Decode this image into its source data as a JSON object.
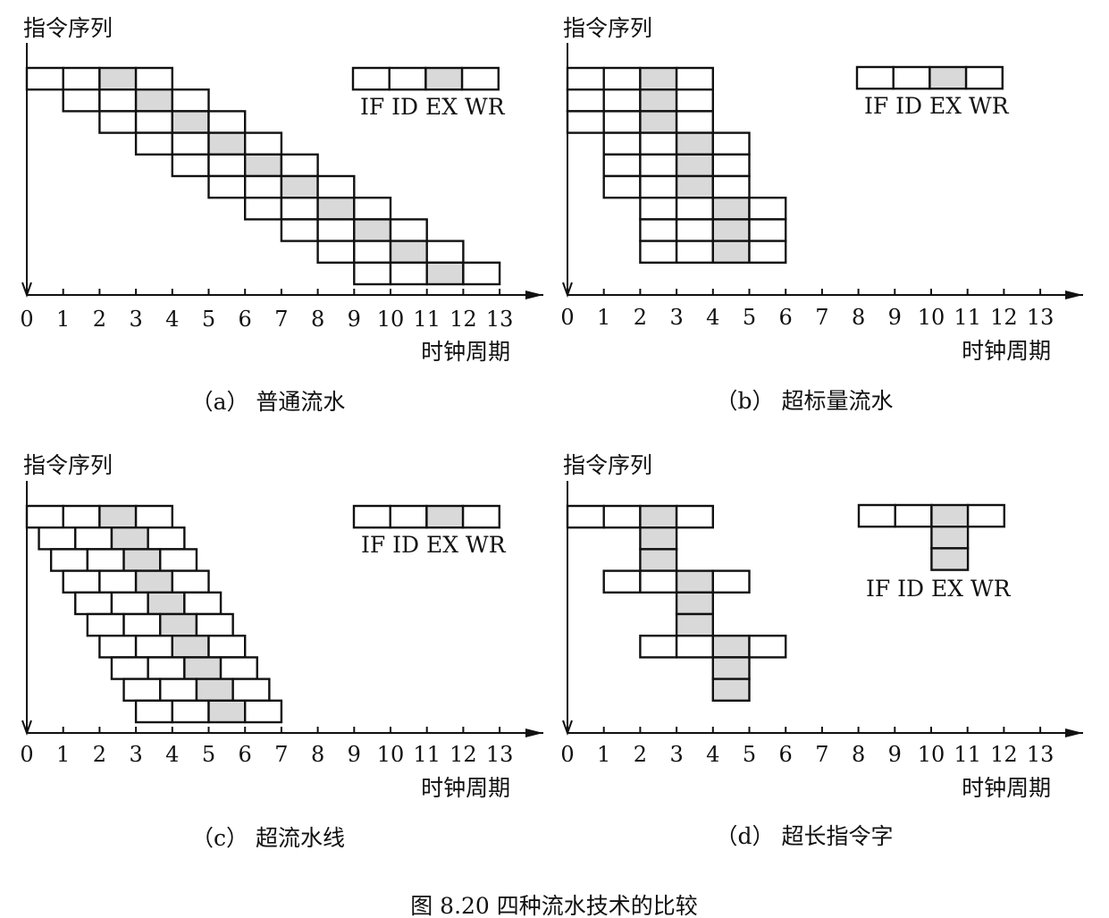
{
  "panels": [
    {
      "id": "a",
      "y_label": "指令序列",
      "x_unit": "时钟周期",
      "x_ticks": [
        "0",
        "1",
        "2",
        "3",
        "4",
        "5",
        "6",
        "7",
        "8",
        "9",
        "10",
        "11",
        "12",
        "13"
      ],
      "caption": "（a） 普通流水",
      "legend": {
        "stages": [
          "IF",
          "ID",
          "EX",
          "WR"
        ],
        "label": "IF  ID EX WR"
      },
      "instructions": [
        {
          "start": 0
        },
        {
          "start": 1
        },
        {
          "start": 2
        },
        {
          "start": 3
        },
        {
          "start": 4
        },
        {
          "start": 5
        },
        {
          "start": 6
        },
        {
          "start": 7
        },
        {
          "start": 8
        },
        {
          "start": 9
        }
      ]
    },
    {
      "id": "b",
      "y_label": "指令序列",
      "x_unit": "时钟周期",
      "x_ticks": [
        "0",
        "1",
        "2",
        "3",
        "4",
        "5",
        "6",
        "7",
        "8",
        "9",
        "10",
        "11",
        "12",
        "13"
      ],
      "caption": "（b） 超标量流水",
      "legend": {
        "stages": [
          "IF",
          "ID",
          "EX",
          "WR"
        ],
        "label": "IF  ID EX WR"
      },
      "instructions": [
        {
          "start": 0
        },
        {
          "start": 0
        },
        {
          "start": 0
        },
        {
          "start": 1
        },
        {
          "start": 1
        },
        {
          "start": 1
        },
        {
          "start": 2
        },
        {
          "start": 2
        },
        {
          "start": 2
        }
      ]
    },
    {
      "id": "c",
      "y_label": "指令序列",
      "x_unit": "时钟周期",
      "x_ticks": [
        "0",
        "1",
        "2",
        "3",
        "4",
        "5",
        "6",
        "7",
        "8",
        "9",
        "10",
        "11",
        "12",
        "13"
      ],
      "caption": "（c） 超流水线",
      "legend": {
        "stages": [
          "IF",
          "ID",
          "EX",
          "WR"
        ],
        "label": "IF  ID EX WR"
      },
      "instructions": [
        {
          "start": 0
        },
        {
          "start": 0.333
        },
        {
          "start": 0.667
        },
        {
          "start": 1
        },
        {
          "start": 1.333
        },
        {
          "start": 1.667
        },
        {
          "start": 2
        },
        {
          "start": 2.333
        },
        {
          "start": 2.667
        },
        {
          "start": 3
        }
      ]
    },
    {
      "id": "d",
      "y_label": "指令序列",
      "x_unit": "时钟周期",
      "x_ticks": [
        "0",
        "1",
        "2",
        "3",
        "4",
        "5",
        "6",
        "7",
        "8",
        "9",
        "10",
        "11",
        "12",
        "13"
      ],
      "caption": "（d） 超长指令字",
      "legend": {
        "stages": [
          "IF",
          "ID",
          "EX",
          "WR"
        ],
        "label": "IF  ID EX WR",
        "ex_units": 3
      },
      "instructions": [
        {
          "start": 0,
          "ex_units": 3
        },
        {
          "start": 1,
          "ex_units": 3
        },
        {
          "start": 2,
          "ex_units": 3
        }
      ]
    }
  ],
  "figure_caption": "图 8.20    四种流水技术的比较",
  "colors": {
    "line": "#111111",
    "ex_fill": "#d9d9d9",
    "background": "#ffffff"
  }
}
